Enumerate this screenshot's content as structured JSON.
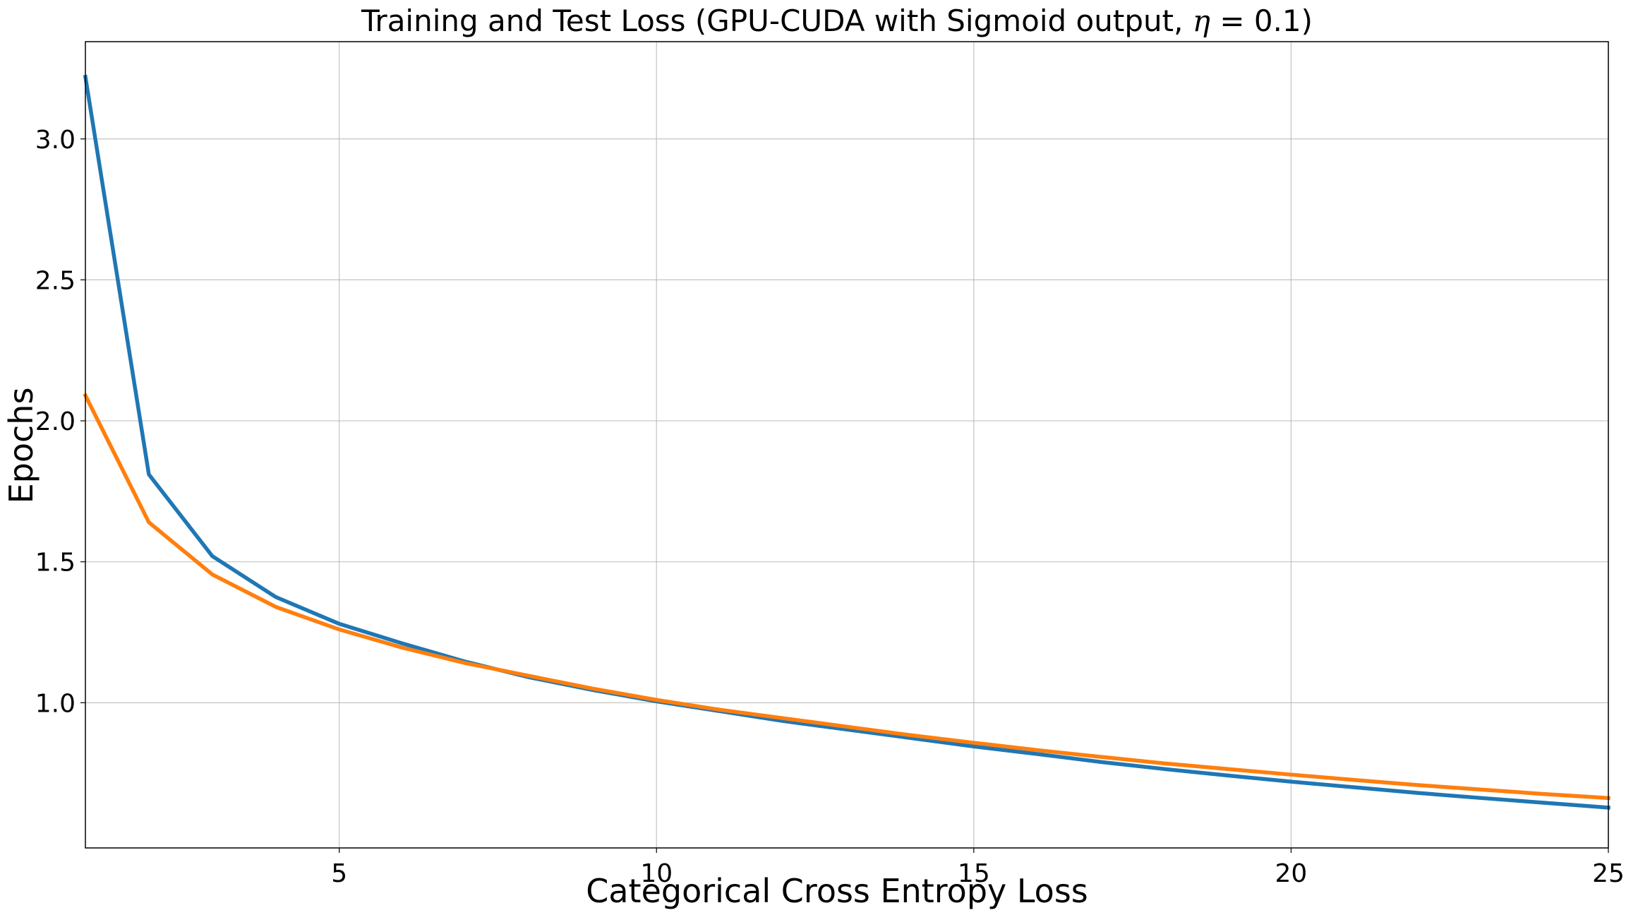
{
  "chart_data": {
    "type": "line",
    "title": "Training and Test Loss (GPU-CUDA with Sigmoid output, η = 0.1)",
    "title_parts": {
      "prefix": "Training and Test Loss (GPU-CUDA with Sigmoid output, ",
      "symbol": "η",
      "suffix": " = 0.1)"
    },
    "xlabel": "Categorical Cross Entropy Loss",
    "ylabel": "Epochs",
    "xlim": [
      1,
      25
    ],
    "ylim": [
      0.485,
      3.345
    ],
    "x_ticks": [
      5,
      10,
      15,
      20,
      25
    ],
    "y_ticks": [
      1.0,
      1.5,
      2.0,
      2.5,
      3.0
    ],
    "y_tick_labels": [
      "1.0",
      "1.5",
      "2.0",
      "2.5",
      "3.0"
    ],
    "grid": true,
    "legend": "none",
    "x": [
      1,
      2,
      3,
      4,
      5,
      6,
      7,
      8,
      9,
      10,
      11,
      12,
      13,
      14,
      15,
      16,
      17,
      18,
      19,
      20,
      21,
      22,
      23,
      24,
      25
    ],
    "series": [
      {
        "color": "#1f77b4",
        "values": [
          3.22,
          1.81,
          1.52,
          1.375,
          1.28,
          1.21,
          1.145,
          1.09,
          1.045,
          1.005,
          0.97,
          0.935,
          0.905,
          0.875,
          0.845,
          0.818,
          0.79,
          0.765,
          0.742,
          0.72,
          0.7,
          0.68,
          0.662,
          0.645,
          0.628
        ]
      },
      {
        "color": "#ff7f0e",
        "values": [
          2.09,
          1.64,
          1.455,
          1.34,
          1.26,
          1.195,
          1.14,
          1.095,
          1.05,
          1.01,
          0.975,
          0.945,
          0.915,
          0.885,
          0.858,
          0.832,
          0.808,
          0.785,
          0.765,
          0.745,
          0.726,
          0.708,
          0.692,
          0.676,
          0.662
        ]
      }
    ]
  }
}
